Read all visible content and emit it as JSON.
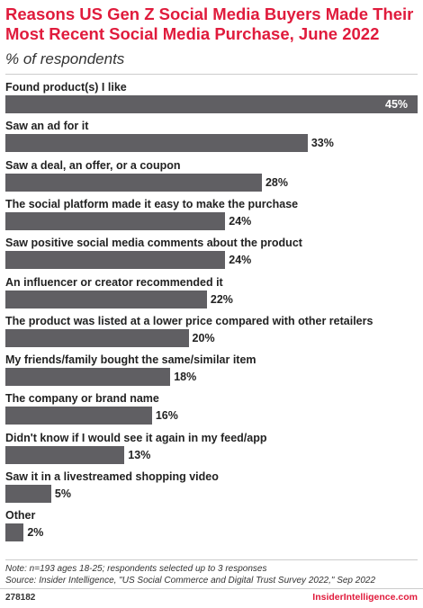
{
  "header": {
    "title": "Reasons US Gen Z Social Media Buyers Made Their Most Recent Social Media Purchase, June 2022",
    "subtitle": "% of respondents"
  },
  "chart_data": {
    "type": "bar",
    "orientation": "horizontal",
    "title": "Reasons US Gen Z Social Media Buyers Made Their Most Recent Social Media Purchase, June 2022",
    "subtitle": "% of respondents",
    "xlim": [
      0,
      45
    ],
    "value_suffix": "%",
    "categories": [
      "Found product(s) I like",
      "Saw an ad for it",
      "Saw a deal, an offer, or a coupon",
      "The social platform made it easy to make the purchase",
      "Saw positive social media comments about the product",
      "An influencer or creator recommended it",
      "The product was listed at a lower price compared with other retailers",
      "My friends/family bought the same/similar item",
      "The company or brand name",
      "Didn't know if I would see it again in my feed/app",
      "Saw it in a livestreamed shopping video",
      "Other"
    ],
    "values": [
      45,
      33,
      28,
      24,
      24,
      22,
      20,
      18,
      16,
      13,
      5,
      2
    ],
    "bar_color": "#605f63"
  },
  "footer": {
    "note": "Note: n=193 ages 18-25; respondents selected up to 3 responses",
    "source": "Source: Insider Intelligence, \"US Social Commerce and Digital Trust Survey 2022,\" Sep 2022",
    "chart_id": "278182",
    "brand": "InsiderIntelligence.com"
  },
  "colors": {
    "title": "#e01b3c",
    "bar": "#605f63",
    "text": "#222222"
  }
}
